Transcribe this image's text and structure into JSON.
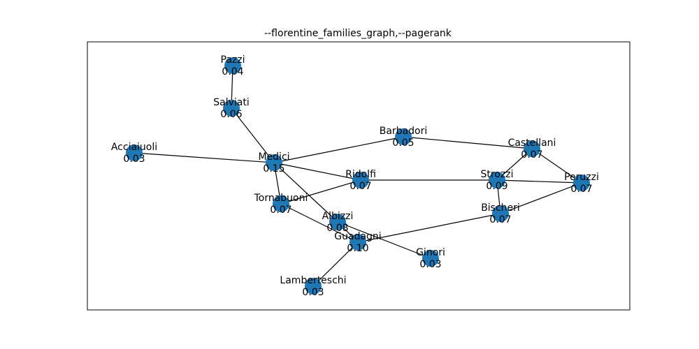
{
  "title": "--florentine_families_graph,--pagerank",
  "graph": {
    "node_color": "#1f77b4",
    "nodes": [
      {
        "id": "Pazzi",
        "value": "0.04"
      },
      {
        "id": "Salviati",
        "value": "0.06"
      },
      {
        "id": "Barbadori",
        "value": "0.05"
      },
      {
        "id": "Castellani",
        "value": "0.07"
      },
      {
        "id": "Acciaiuoli",
        "value": "0.03"
      },
      {
        "id": "Medici",
        "value": "0.15"
      },
      {
        "id": "Ridolfi",
        "value": "0.07"
      },
      {
        "id": "Strozzi",
        "value": "0.09"
      },
      {
        "id": "Peruzzi",
        "value": "0.07"
      },
      {
        "id": "Tornabuoni",
        "value": "0.07"
      },
      {
        "id": "Bischeri",
        "value": "0.07"
      },
      {
        "id": "Albizzi",
        "value": "0.08"
      },
      {
        "id": "Guadagni",
        "value": "0.10"
      },
      {
        "id": "Ginori",
        "value": "0.03"
      },
      {
        "id": "Lamberteschi",
        "value": "0.03"
      }
    ],
    "edges": [
      [
        "Pazzi",
        "Salviati"
      ],
      [
        "Salviati",
        "Medici"
      ],
      [
        "Acciaiuoli",
        "Medici"
      ],
      [
        "Medici",
        "Barbadori"
      ],
      [
        "Medici",
        "Ridolfi"
      ],
      [
        "Medici",
        "Tornabuoni"
      ],
      [
        "Medici",
        "Albizzi"
      ],
      [
        "Barbadori",
        "Castellani"
      ],
      [
        "Castellani",
        "Strozzi"
      ],
      [
        "Castellani",
        "Peruzzi"
      ],
      [
        "Ridolfi",
        "Strozzi"
      ],
      [
        "Ridolfi",
        "Tornabuoni"
      ],
      [
        "Strozzi",
        "Peruzzi"
      ],
      [
        "Strozzi",
        "Bischeri"
      ],
      [
        "Peruzzi",
        "Bischeri"
      ],
      [
        "Tornabuoni",
        "Guadagni"
      ],
      [
        "Bischeri",
        "Guadagni"
      ],
      [
        "Albizzi",
        "Guadagni"
      ],
      [
        "Albizzi",
        "Ginori"
      ],
      [
        "Guadagni",
        "Lamberteschi"
      ]
    ]
  }
}
